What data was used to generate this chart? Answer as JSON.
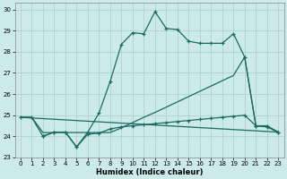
{
  "xlabel": "Humidex (Indice chaleur)",
  "background_color": "#cceaea",
  "grid_color": "#aacccc",
  "line_color": "#1a6b60",
  "xlim": [
    -0.5,
    23.5
  ],
  "ylim": [
    23,
    30.3
  ],
  "yticks": [
    23,
    24,
    25,
    26,
    27,
    28,
    29,
    30
  ],
  "xticks": [
    0,
    1,
    2,
    3,
    4,
    5,
    6,
    7,
    8,
    9,
    10,
    11,
    12,
    13,
    14,
    15,
    16,
    17,
    18,
    19,
    20,
    21,
    22,
    23
  ],
  "series1_x": [
    0,
    1,
    2,
    3,
    4,
    5,
    6,
    7,
    8,
    9,
    10,
    11,
    12,
    13,
    14,
    15,
    16,
    17,
    18,
    19,
    20,
    21,
    22,
    23
  ],
  "series1_y": [
    24.9,
    24.9,
    24.0,
    24.2,
    24.2,
    23.5,
    24.2,
    25.1,
    26.6,
    28.35,
    28.9,
    28.85,
    29.9,
    29.1,
    29.05,
    28.5,
    28.4,
    28.4,
    28.4,
    28.85,
    27.75,
    24.5,
    24.5,
    24.2
  ],
  "series2_x": [
    2,
    3,
    4,
    5,
    6,
    7,
    8,
    9,
    10,
    11,
    12,
    13,
    14,
    15,
    16,
    17,
    18,
    19,
    20,
    21,
    22,
    23
  ],
  "series2_y": [
    24.0,
    24.2,
    24.2,
    23.5,
    24.1,
    24.15,
    24.35,
    24.45,
    24.5,
    24.55,
    24.6,
    24.65,
    24.7,
    24.75,
    24.8,
    24.85,
    24.9,
    24.95,
    25.0,
    24.5,
    24.45,
    24.2
  ],
  "series3_x": [
    0,
    1,
    2,
    3,
    4,
    5,
    6,
    7,
    8,
    9,
    10,
    11,
    12,
    13,
    14,
    15,
    16,
    17,
    18,
    19,
    20,
    21,
    22,
    23
  ],
  "series3_y": [
    24.9,
    24.9,
    24.18,
    24.18,
    24.18,
    24.18,
    24.18,
    24.18,
    24.18,
    24.4,
    24.65,
    24.9,
    25.13,
    25.38,
    25.63,
    25.88,
    26.13,
    26.38,
    26.63,
    26.88,
    27.75,
    24.5,
    24.45,
    24.2
  ],
  "line4_x": [
    0,
    23
  ],
  "line4_y": [
    24.9,
    24.2
  ]
}
